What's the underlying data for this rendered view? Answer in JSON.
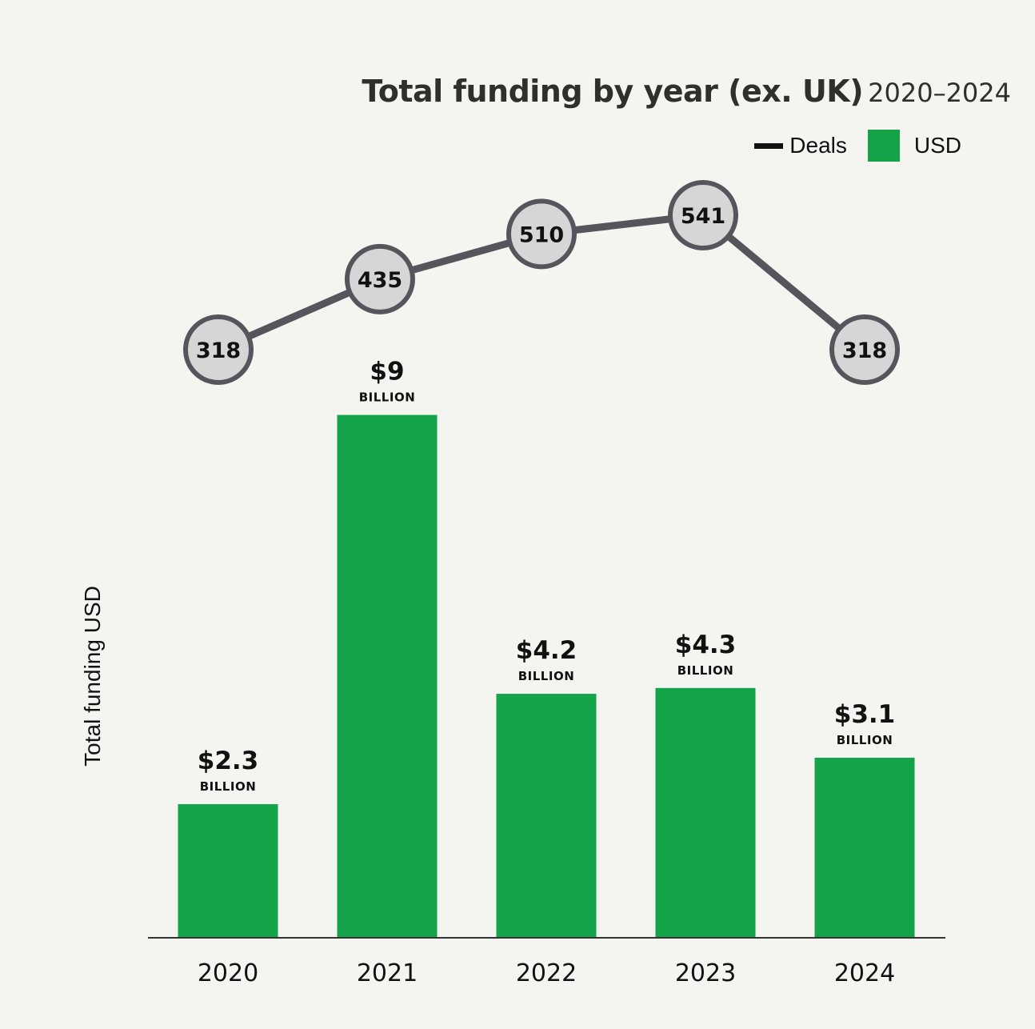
{
  "title": "Total funding by year (ex. UK)",
  "subtitle": "2020–2024",
  "legend": {
    "line_label": "Deals",
    "bar_label": "USD"
  },
  "ylabel": "Total funding USD",
  "colors": {
    "bar": "#15a34a",
    "line": "#54565c",
    "marker_fill": "#d6d6d6",
    "background": "#f4f4f0"
  },
  "chart_data": {
    "type": "bar",
    "categories": [
      "2020",
      "2021",
      "2022",
      "2023",
      "2024"
    ],
    "series": [
      {
        "name": "USD",
        "type": "bar",
        "values": [
          2.3,
          9,
          4.2,
          4.3,
          3.1
        ],
        "labels": [
          "$2.3",
          "$9",
          "$4.2",
          "$4.3",
          "$3.1"
        ],
        "unit": "BILLION"
      },
      {
        "name": "Deals",
        "type": "line",
        "values": [
          318,
          435,
          510,
          541,
          318
        ]
      }
    ],
    "title": "Total funding by year (ex. UK)",
    "xlabel": "",
    "ylabel": "Total funding USD",
    "ylim": [
      0,
      9
    ],
    "grid": false,
    "legend": "top-right"
  }
}
